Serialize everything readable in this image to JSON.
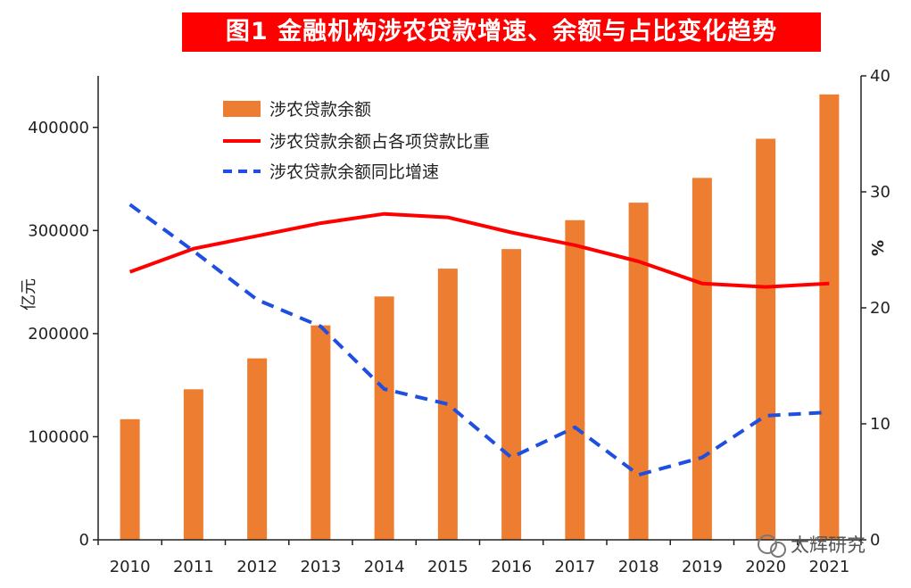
{
  "chart_data": {
    "type": "bar+line",
    "title": "图1  金融机构涉农贷款增速、余额与占比变化趋势",
    "categories": [
      "2010",
      "2011",
      "2012",
      "2013",
      "2014",
      "2015",
      "2016",
      "2017",
      "2018",
      "2019",
      "2020",
      "2021"
    ],
    "series": [
      {
        "name": "涉农贷款余额",
        "type": "bar",
        "axis": "left",
        "color": "#ed7d31",
        "values": [
          117000,
          146000,
          176000,
          208000,
          236000,
          263000,
          282000,
          310000,
          327000,
          351000,
          389000,
          432000
        ]
      },
      {
        "name": "涉农贷款余额占各项贷款比重",
        "type": "line",
        "axis": "right",
        "color": "#ff0000",
        "values": [
          23.1,
          25.1,
          26.2,
          27.3,
          28.1,
          27.8,
          26.5,
          25.4,
          24.0,
          22.1,
          21.8,
          22.1
        ]
      },
      {
        "name": "涉农贷款余额同比增速",
        "type": "dashed-line",
        "axis": "right",
        "color": "#1f4fe0",
        "values": [
          28.9,
          24.9,
          20.7,
          18.4,
          13.0,
          11.7,
          7.1,
          9.7,
          5.6,
          7.1,
          10.7,
          11.0
        ]
      }
    ],
    "ylabel_left": "亿元",
    "ylabel_right": "%",
    "ylim_left": [
      0,
      450000
    ],
    "ylim_right": [
      0,
      40
    ],
    "yticks_left": [
      "0",
      "100000",
      "200000",
      "300000",
      "400000"
    ],
    "yticks_right": [
      "0",
      "10",
      "20",
      "30",
      "40"
    ],
    "legend_position": "top-left",
    "grid": false
  },
  "watermark": "太辉研究"
}
